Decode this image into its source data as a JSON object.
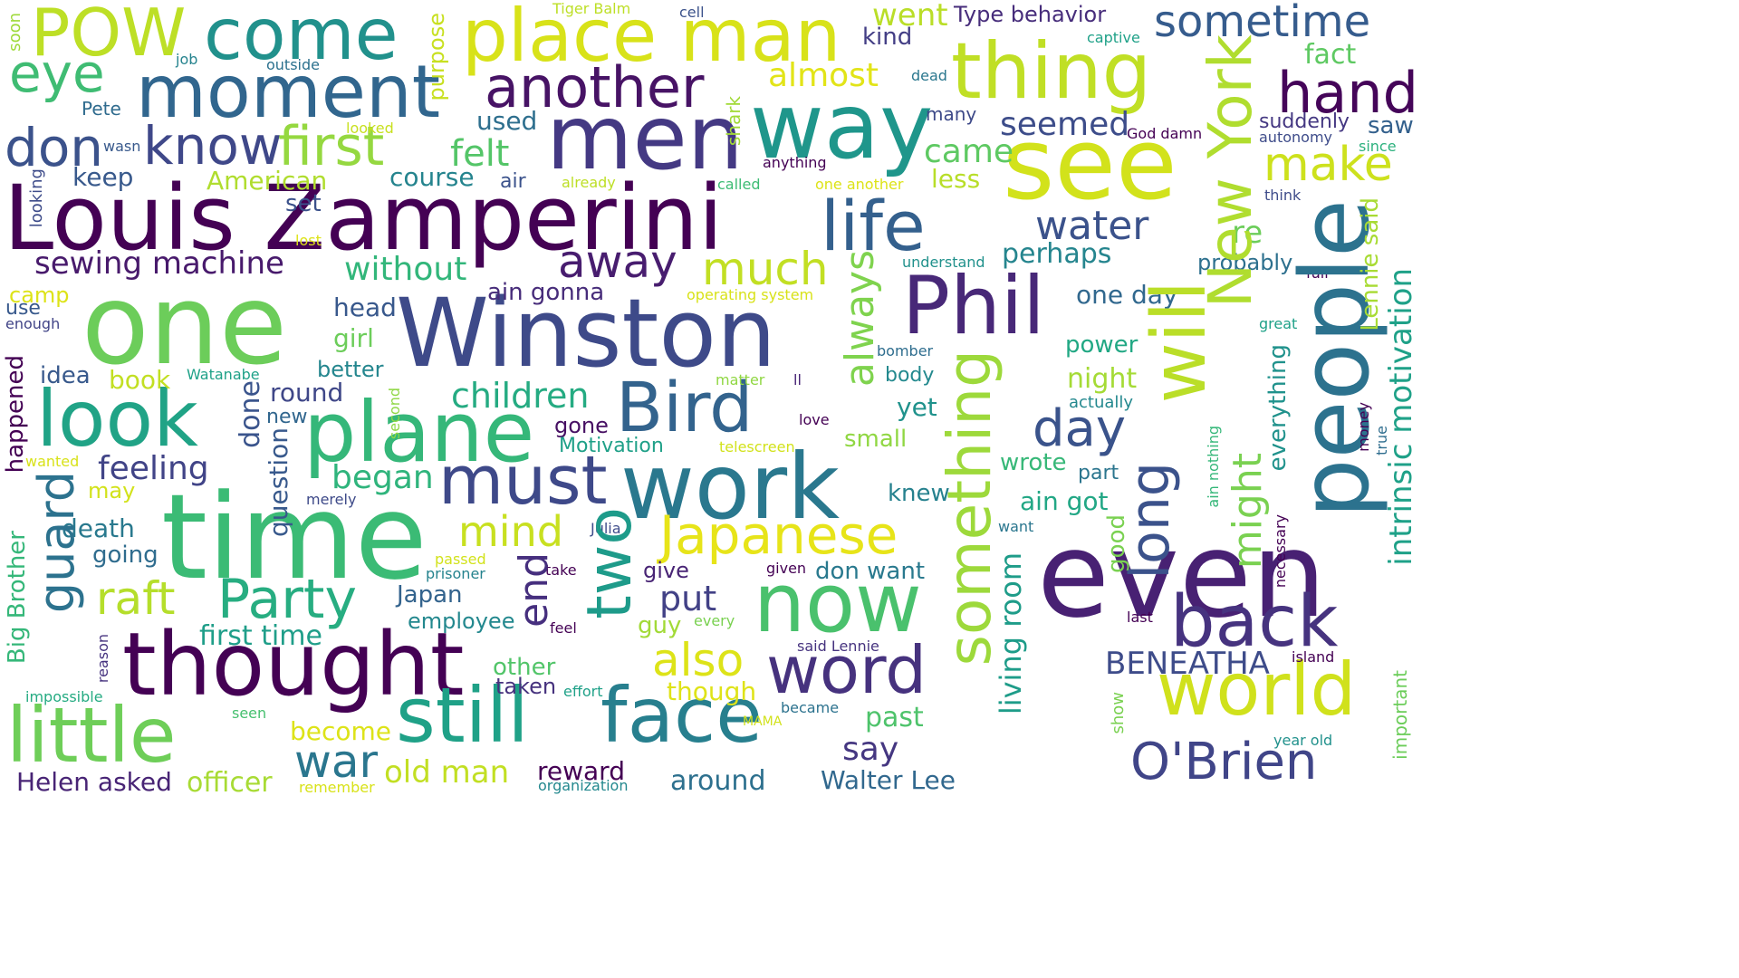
{
  "words": [
    {
      "text": "Louis Zamperini",
      "color": "#440154"
    },
    {
      "text": "Winston",
      "color": "#3e4a89"
    },
    {
      "text": "one",
      "color": "#6ccd5a"
    },
    {
      "text": "time",
      "color": "#3bbb75"
    },
    {
      "text": "men",
      "color": "#443983"
    },
    {
      "text": "way",
      "color": "#1f968b"
    },
    {
      "text": "see",
      "color": "#d2e21b"
    },
    {
      "text": "people",
      "color": "#2c728e"
    },
    {
      "text": "even",
      "color": "#482173"
    },
    {
      "text": "work",
      "color": "#2a788e"
    },
    {
      "text": "thought",
      "color": "#440154"
    },
    {
      "text": "thing",
      "color": "#c0df25"
    },
    {
      "text": "moment",
      "color": "#31668e"
    },
    {
      "text": "place man",
      "color": "#d8e219"
    },
    {
      "text": "come",
      "color": "#21918c"
    },
    {
      "text": "POW",
      "color": "#bddf26"
    },
    {
      "text": "Phil",
      "color": "#482878"
    },
    {
      "text": "plane",
      "color": "#35b779"
    },
    {
      "text": "look",
      "color": "#20a386"
    },
    {
      "text": "Bird",
      "color": "#33638d"
    },
    {
      "text": "now",
      "color": "#4ac16d"
    },
    {
      "text": "still",
      "color": "#1fa187"
    },
    {
      "text": "face",
      "color": "#277f8e"
    },
    {
      "text": "world",
      "color": "#d0e11c"
    },
    {
      "text": "little",
      "color": "#6ece58"
    },
    {
      "text": "word",
      "color": "#46327e"
    },
    {
      "text": "back",
      "color": "#46337f"
    },
    {
      "text": "must",
      "color": "#3e4989"
    },
    {
      "text": "life",
      "color": "#34608d"
    },
    {
      "text": "another",
      "color": "#471365"
    },
    {
      "text": "hand",
      "color": "#450559"
    },
    {
      "text": "sometime",
      "color": "#365c8d"
    },
    {
      "text": "eye",
      "color": "#3fbc73"
    },
    {
      "text": "know",
      "color": "#3f4889"
    },
    {
      "text": "don",
      "color": "#3b528b"
    },
    {
      "text": "first",
      "color": "#95d840"
    },
    {
      "text": "make",
      "color": "#cde11d"
    },
    {
      "text": "Party",
      "color": "#27ad81"
    },
    {
      "text": "Japanese",
      "color": "#e7e419"
    },
    {
      "text": "two",
      "color": "#1e9b8a"
    },
    {
      "text": "day",
      "color": "#3a538b"
    },
    {
      "text": "O'Brien",
      "color": "#404588"
    },
    {
      "text": "water",
      "color": "#3b528b"
    },
    {
      "text": "away",
      "color": "#481d6f"
    },
    {
      "text": "much",
      "color": "#c2df23"
    },
    {
      "text": "raft",
      "color": "#b5de2b"
    },
    {
      "text": "also",
      "color": "#dde318"
    },
    {
      "text": "mind",
      "color": "#c8e020"
    },
    {
      "text": "war",
      "color": "#2a768e"
    },
    {
      "text": "say",
      "color": "#453781"
    },
    {
      "text": "put",
      "color": "#424186"
    },
    {
      "text": "end",
      "color": "#462f7e"
    },
    {
      "text": "felt",
      "color": "#54c568"
    },
    {
      "text": "seemed",
      "color": "#3d4d8a"
    },
    {
      "text": "almost",
      "color": "#e2e418"
    },
    {
      "text": "went",
      "color": "#bade28"
    },
    {
      "text": "children",
      "color": "#25ab82"
    },
    {
      "text": "feeling",
      "color": "#414487"
    },
    {
      "text": "began",
      "color": "#2fb47c"
    },
    {
      "text": "without",
      "color": "#32b67a"
    },
    {
      "text": "sewing machine",
      "color": "#481a6c"
    },
    {
      "text": "old man",
      "color": "#c2df23"
    },
    {
      "text": "first time",
      "color": "#1f9e89"
    },
    {
      "text": "came",
      "color": "#5ec962"
    },
    {
      "text": "perhaps",
      "color": "#25858e"
    },
    {
      "text": "BENEATHA",
      "color": "#3e4c8a"
    },
    {
      "text": "Walter Lee",
      "color": "#31688e"
    },
    {
      "text": "Helen asked",
      "color": "#482475"
    },
    {
      "text": "officer",
      "color": "#a8db34"
    },
    {
      "text": "become",
      "color": "#dde318"
    },
    {
      "text": "around",
      "color": "#2d708e"
    },
    {
      "text": "reward",
      "color": "#440154"
    },
    {
      "text": "past",
      "color": "#4ec36b"
    },
    {
      "text": "living room",
      "color": "#1e9c89"
    },
    {
      "text": "ain gonna",
      "color": "#472c7a"
    },
    {
      "text": "Type behavior",
      "color": "#472d7b"
    },
    {
      "text": "kind",
      "color": "#433e85"
    },
    {
      "text": "fact",
      "color": "#5ec962"
    },
    {
      "text": "suddenly",
      "color": "#453882"
    },
    {
      "text": "saw",
      "color": "#34618d"
    },
    {
      "text": "less",
      "color": "#b8de29"
    },
    {
      "text": "course",
      "color": "#25848e"
    },
    {
      "text": "used",
      "color": "#2e6f8e"
    },
    {
      "text": "keep",
      "color": "#38598c"
    },
    {
      "text": "set",
      "color": "#3b518b"
    },
    {
      "text": "American",
      "color": "#b0dd2f"
    },
    {
      "text": "head",
      "color": "#38588c"
    },
    {
      "text": "girl",
      "color": "#6ccd5a"
    },
    {
      "text": "better",
      "color": "#24868e"
    },
    {
      "text": "idea",
      "color": "#38598c"
    },
    {
      "text": "book",
      "color": "#c2df23"
    },
    {
      "text": "round",
      "color": "#3f4788"
    },
    {
      "text": "new",
      "color": "#31668e"
    },
    {
      "text": "yet",
      "color": "#20928c"
    },
    {
      "text": "small",
      "color": "#90d743"
    },
    {
      "text": "knew",
      "color": "#26818e"
    },
    {
      "text": "wrote",
      "color": "#37b878"
    },
    {
      "text": "part",
      "color": "#2b758e"
    },
    {
      "text": "ain got",
      "color": "#22a785"
    },
    {
      "text": "night",
      "color": "#a5db36"
    },
    {
      "text": "body",
      "color": "#23898e"
    },
    {
      "text": "power",
      "color": "#22a884"
    },
    {
      "text": "one day",
      "color": "#31688e"
    },
    {
      "text": "re",
      "color": "#6ccd5a"
    },
    {
      "text": "probably",
      "color": "#2d708e"
    },
    {
      "text": "gone",
      "color": "#471063"
    },
    {
      "text": "Motivation",
      "color": "#1fa088"
    },
    {
      "text": "give",
      "color": "#482475"
    },
    {
      "text": "guy",
      "color": "#a2da37"
    },
    {
      "text": "Japan",
      "color": "#33638d"
    },
    {
      "text": "employee",
      "color": "#23888e"
    },
    {
      "text": "other",
      "color": "#52c569"
    },
    {
      "text": "taken",
      "color": "#46327e"
    },
    {
      "text": "though",
      "color": "#dfe318"
    },
    {
      "text": "going",
      "color": "#2f6c8e"
    },
    {
      "text": "death",
      "color": "#29798e"
    },
    {
      "text": "may",
      "color": "#d2e21b"
    },
    {
      "text": "don want",
      "color": "#29798e"
    },
    {
      "text": "camp",
      "color": "#dde318"
    },
    {
      "text": "use",
      "color": "#38598c"
    },
    {
      "text": "enough",
      "color": "#414487"
    },
    {
      "text": "job",
      "color": "#25838e"
    },
    {
      "text": "outside",
      "color": "#2c718e"
    },
    {
      "text": "Pete",
      "color": "#2f6b8e"
    },
    {
      "text": "wasn",
      "color": "#38598c"
    },
    {
      "text": "air",
      "color": "#3b528b"
    },
    {
      "text": "already",
      "color": "#bddf26"
    },
    {
      "text": "called",
      "color": "#3dbc74"
    },
    {
      "text": "one another",
      "color": "#dde318"
    },
    {
      "text": "anything",
      "color": "#440154"
    },
    {
      "text": "Tiger Balm",
      "color": "#bddf26"
    },
    {
      "text": "cell",
      "color": "#3b528b"
    },
    {
      "text": "captive",
      "color": "#1fa188"
    },
    {
      "text": "dead",
      "color": "#2a778e"
    },
    {
      "text": "many",
      "color": "#3e4a89"
    },
    {
      "text": "looked",
      "color": "#c8e020"
    },
    {
      "text": "God damn",
      "color": "#440154"
    },
    {
      "text": "autonomy",
      "color": "#3e4c8a"
    },
    {
      "text": "since",
      "color": "#2cb17e"
    },
    {
      "text": "think",
      "color": "#3e4c8a"
    },
    {
      "text": "full",
      "color": "#440154"
    },
    {
      "text": "lost",
      "color": "#dde318"
    },
    {
      "text": "understand",
      "color": "#21918c"
    },
    {
      "text": "operating system",
      "color": "#d8e219"
    },
    {
      "text": "great",
      "color": "#1fa188"
    },
    {
      "text": "bomber",
      "color": "#2e6d8e"
    },
    {
      "text": "matter",
      "color": "#90d743"
    },
    {
      "text": "ll",
      "color": "#482576"
    },
    {
      "text": "love",
      "color": "#440154"
    },
    {
      "text": "telescreen",
      "color": "#d2e21b"
    },
    {
      "text": "Watanabe",
      "color": "#1fa188"
    },
    {
      "text": "actually",
      "color": "#23888e"
    },
    {
      "text": "merely",
      "color": "#3e4a89"
    },
    {
      "text": "Julia",
      "color": "#3e4c8a"
    },
    {
      "text": "passed",
      "color": "#d2e21b"
    },
    {
      "text": "prisoner",
      "color": "#25838e"
    },
    {
      "text": "take",
      "color": "#440154"
    },
    {
      "text": "given",
      "color": "#440154"
    },
    {
      "text": "want",
      "color": "#2a768e"
    },
    {
      "text": "feel",
      "color": "#440154"
    },
    {
      "text": "every",
      "color": "#7ad151"
    },
    {
      "text": "said Lennie",
      "color": "#46337f"
    },
    {
      "text": "last",
      "color": "#440154"
    },
    {
      "text": "island",
      "color": "#440154"
    },
    {
      "text": "effort",
      "color": "#1fa188"
    },
    {
      "text": "impossible",
      "color": "#25ab82"
    },
    {
      "text": "became",
      "color": "#2c728e"
    },
    {
      "text": "MAMA",
      "color": "#d2e21b"
    },
    {
      "text": "seen",
      "color": "#46c06f"
    },
    {
      "text": "remember",
      "color": "#d8e219"
    },
    {
      "text": "organization",
      "color": "#23888e"
    },
    {
      "text": "year old",
      "color": "#21918c"
    },
    {
      "text": "wanted",
      "color": "#d8e219"
    },
    {
      "text": "purpose",
      "color": "#c8e020"
    },
    {
      "text": "soon",
      "color": "#9fda3a"
    },
    {
      "text": "shark",
      "color": "#a2da37"
    },
    {
      "text": "looking",
      "color": "#3e4c8a"
    },
    {
      "text": "always",
      "color": "#7fd34e"
    },
    {
      "text": "something",
      "color": "#9dd93b"
    },
    {
      "text": "will",
      "color": "#bade28"
    },
    {
      "text": "long",
      "color": "#3b528b"
    },
    {
      "text": "New York",
      "color": "#b0dd2f"
    },
    {
      "text": "guard",
      "color": "#2c728e"
    },
    {
      "text": "done",
      "color": "#3a548c"
    },
    {
      "text": "question",
      "color": "#38598c"
    },
    {
      "text": "happened",
      "color": "#440154"
    },
    {
      "text": "Big Brother",
      "color": "#35b779"
    },
    {
      "text": "reason",
      "color": "#46337f"
    },
    {
      "text": "second",
      "color": "#8fd744"
    },
    {
      "text": "might",
      "color": "#7ad151"
    },
    {
      "text": "good",
      "color": "#7ad151"
    },
    {
      "text": "everything",
      "color": "#20928c"
    },
    {
      "text": "Lennie said",
      "color": "#a8db34"
    },
    {
      "text": "intrinsic motivation",
      "color": "#1fa188"
    },
    {
      "text": "ain nothing",
      "color": "#35b779"
    },
    {
      "text": "necessary",
      "color": "#440154"
    },
    {
      "text": "money",
      "color": "#440154"
    },
    {
      "text": "true",
      "color": "#2e6d8e"
    },
    {
      "text": "important",
      "color": "#6ccd5a"
    },
    {
      "text": "show",
      "color": "#7ad151"
    }
  ]
}
